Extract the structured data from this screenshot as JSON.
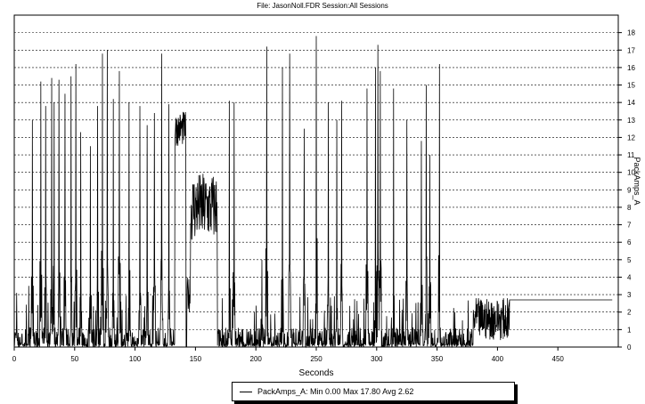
{
  "header": {
    "title": "File: JasonNoll.FDR   Session:All Sessions"
  },
  "chart_data": {
    "type": "line",
    "title": "File: JasonNoll.FDR   Session:All Sessions",
    "xlabel": "Seconds",
    "ylabel": "PackAmps_A",
    "xlim": [
      0,
      500
    ],
    "ylim": [
      0,
      19
    ],
    "x_ticks": [
      0,
      50,
      100,
      150,
      200,
      250,
      300,
      350,
      400,
      450
    ],
    "y_ticks": [
      0,
      1,
      2,
      3,
      4,
      5,
      6,
      7,
      8,
      9,
      10,
      11,
      12,
      13,
      14,
      15,
      16,
      17,
      18
    ],
    "grid": "horizontal dashed",
    "legend_position": "bottom-center",
    "series": [
      {
        "name": "PackAmps_A",
        "color": "#000000",
        "spikes": [
          [
            2,
            3.1
          ],
          [
            12,
            3.5
          ],
          [
            15,
            13.0
          ],
          [
            22,
            15.2
          ],
          [
            26,
            13.8
          ],
          [
            31,
            15.4
          ],
          [
            33,
            14.0
          ],
          [
            37,
            15.3
          ],
          [
            42,
            14.5
          ],
          [
            47,
            15.5
          ],
          [
            51,
            16.2
          ],
          [
            55,
            12.3
          ],
          [
            63,
            11.5
          ],
          [
            69,
            13.8
          ],
          [
            73,
            16.8
          ],
          [
            77,
            17.0
          ],
          [
            82,
            14.2
          ],
          [
            87,
            15.8
          ],
          [
            95,
            14.0
          ],
          [
            104,
            13.8
          ],
          [
            110,
            12.7
          ],
          [
            116,
            13.4
          ],
          [
            122,
            16.8
          ],
          [
            128,
            13.9
          ],
          [
            178,
            14.1
          ],
          [
            182,
            14.0
          ],
          [
            205,
            5.0
          ],
          [
            209,
            17.2
          ],
          [
            222,
            16.0
          ],
          [
            228,
            16.8
          ],
          [
            240,
            12.5
          ],
          [
            250,
            17.8
          ],
          [
            260,
            14.0
          ],
          [
            267,
            13.0
          ],
          [
            271,
            14.1
          ],
          [
            292,
            14.8
          ],
          [
            299,
            16.0
          ],
          [
            301,
            17.3
          ],
          [
            303,
            15.8
          ],
          [
            314,
            14.8
          ],
          [
            325,
            13.0
          ],
          [
            337,
            11.8
          ],
          [
            341,
            15.0
          ],
          [
            344,
            11.0
          ],
          [
            352,
            16.2
          ]
        ],
        "segments": [
          {
            "label": "hover",
            "x": [
              133,
              142
            ],
            "level": 12.5,
            "noise": 1.0
          },
          {
            "label": "hover",
            "x": [
              146,
              168
            ],
            "level": 8.0,
            "noise": 2.0
          },
          {
            "label": "dip",
            "x": [
              143,
              147
            ],
            "level": 3.0,
            "noise": 1.0
          }
        ],
        "gap": [
          138,
          168
        ],
        "baseline": {
          "x": [
            0,
            410
          ],
          "level": 0.7,
          "noise": 0.9
        },
        "tail_activity": {
          "x": [
            380,
            410
          ],
          "level": 1.6,
          "noise": 1.2
        },
        "tail_step": [
          [
            408,
            1.7
          ],
          [
            410,
            2.7
          ],
          [
            495,
            2.7
          ]
        ],
        "min": 0.0,
        "max": 17.8,
        "avg": 2.62
      }
    ]
  },
  "legend": {
    "text": "PackAmps_A:  Min 0.00 Max 17.80 Avg 2.62"
  }
}
